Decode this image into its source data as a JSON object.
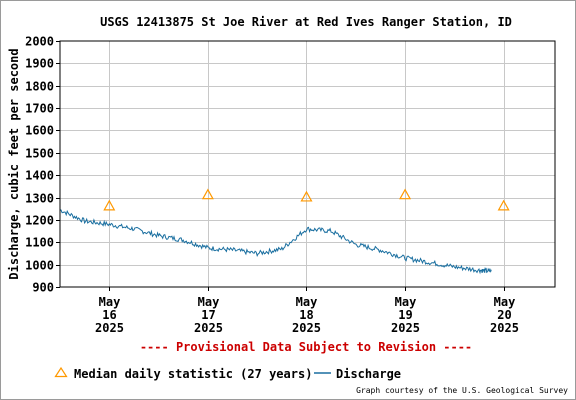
{
  "chart_data": {
    "type": "line",
    "title": "USGS 12413875 St Joe River at Red Ives Ranger Station, ID",
    "ylabel": "Discharge, cubic feet per second",
    "ylim": [
      900,
      2000
    ],
    "y_ticks": [
      900,
      1000,
      1100,
      1200,
      1300,
      1400,
      1500,
      1600,
      1700,
      1800,
      1900,
      2000
    ],
    "xlim": [
      "2025-05-15T12:00",
      "2025-05-20T12:30"
    ],
    "x_ticks": [
      {
        "at": "2025-05-16T00:00",
        "month": "May",
        "day": "16",
        "year": "2025"
      },
      {
        "at": "2025-05-17T00:00",
        "month": "May",
        "day": "17",
        "year": "2025"
      },
      {
        "at": "2025-05-18T00:00",
        "month": "May",
        "day": "18",
        "year": "2025"
      },
      {
        "at": "2025-05-19T00:00",
        "month": "May",
        "day": "19",
        "year": "2025"
      },
      {
        "at": "2025-05-20T00:00",
        "month": "May",
        "day": "20",
        "year": "2025"
      }
    ],
    "grid": true,
    "series": [
      {
        "name": "Discharge",
        "color": "#1a6fa0",
        "marker": "line",
        "points": [
          {
            "x": "2025-05-15T12:00",
            "y": 1245
          },
          {
            "x": "2025-05-15T18:00",
            "y": 1195
          },
          {
            "x": "2025-05-16T00:00",
            "y": 1180
          },
          {
            "x": "2025-05-16T06:00",
            "y": 1160
          },
          {
            "x": "2025-05-16T12:00",
            "y": 1130
          },
          {
            "x": "2025-05-16T18:00",
            "y": 1110
          },
          {
            "x": "2025-05-17T00:00",
            "y": 1075
          },
          {
            "x": "2025-05-17T06:00",
            "y": 1065
          },
          {
            "x": "2025-05-17T12:00",
            "y": 1050
          },
          {
            "x": "2025-05-17T18:00",
            "y": 1070
          },
          {
            "x": "2025-05-18T00:00",
            "y": 1160
          },
          {
            "x": "2025-05-18T06:00",
            "y": 1150
          },
          {
            "x": "2025-05-18T12:00",
            "y": 1090
          },
          {
            "x": "2025-05-18T18:00",
            "y": 1065
          },
          {
            "x": "2025-05-19T00:00",
            "y": 1030
          },
          {
            "x": "2025-05-19T06:00",
            "y": 1010
          },
          {
            "x": "2025-05-19T12:00",
            "y": 990
          },
          {
            "x": "2025-05-19T18:00",
            "y": 975
          },
          {
            "x": "2025-05-19T21:00",
            "y": 970
          }
        ]
      },
      {
        "name": "Median daily statistic (27 years)",
        "color": "#ff9900",
        "marker": "triangle",
        "points": [
          {
            "x": "2025-05-16T00:00",
            "y": 1265
          },
          {
            "x": "2025-05-17T00:00",
            "y": 1315
          },
          {
            "x": "2025-05-18T00:00",
            "y": 1305
          },
          {
            "x": "2025-05-19T00:00",
            "y": 1315
          },
          {
            "x": "2025-05-20T00:00",
            "y": 1265
          }
        ]
      }
    ]
  },
  "provisional_notice": "---- Provisional Data Subject to Revision ----",
  "legend": [
    {
      "label": "Median daily statistic (27 years)",
      "icon": "triangle",
      "color": "#ff9900"
    },
    {
      "label": "Discharge",
      "icon": "line",
      "color": "#1a6fa0"
    }
  ],
  "credit": "Graph courtesy of the U.S. Geological Survey"
}
